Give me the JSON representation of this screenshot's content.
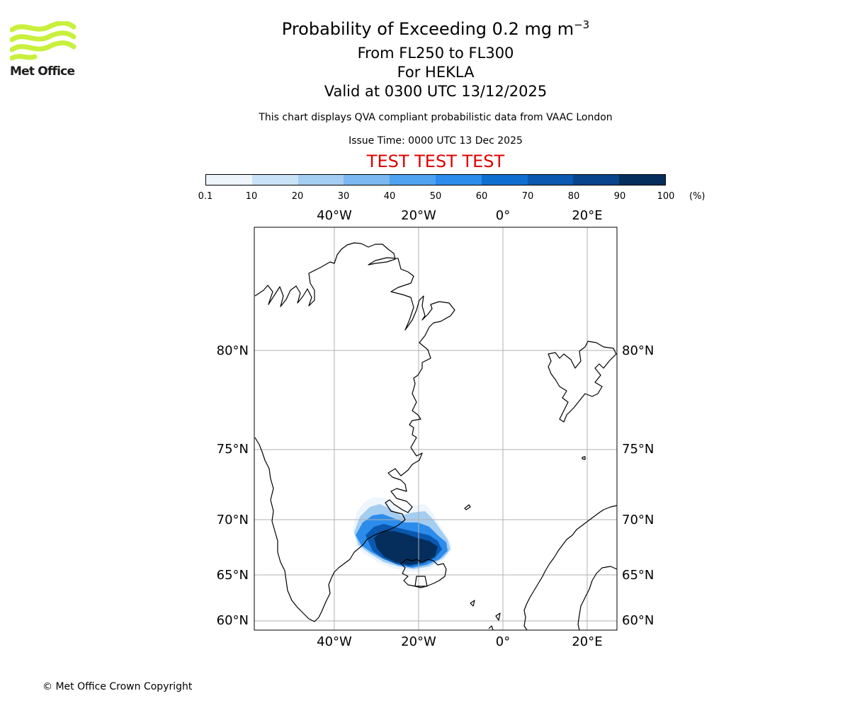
{
  "header": {
    "title_main": "Probability of Exceeding 0.2 mg m",
    "title_exp": "−3",
    "title_line2": "From FL250 to FL300",
    "title_line3": "For HEKLA",
    "title_line4": "Valid at 0300 UTC 13/12/2025",
    "subtitle": "This chart displays QVA compliant probabilistic data from VAAC London",
    "issue_time": "Issue Time: 0000 UTC 13 Dec 2025",
    "test_banner": "TEST TEST TEST"
  },
  "logo": {
    "text": "Met Office",
    "color": "#c8f03c"
  },
  "colorbar": {
    "ticks": [
      "0.1",
      "10",
      "20",
      "30",
      "40",
      "50",
      "60",
      "70",
      "80",
      "90",
      "100"
    ],
    "unit": "(%)",
    "colors": [
      "#eef5fd",
      "#c9e2f7",
      "#a4cdf2",
      "#7bb8f0",
      "#4ea2ef",
      "#2b8cec",
      "#0f6fd1",
      "#0a58b0",
      "#07448a",
      "#052e5c"
    ]
  },
  "map": {
    "lon_labels": [
      "40°W",
      "20°W",
      "0°",
      "20°E"
    ],
    "lat_labels": [
      "80°N",
      "75°N",
      "70°N",
      "65°N",
      "60°N"
    ],
    "gridline_color": "#b0b0b0",
    "coastline_color": "#000000",
    "volcano": "HEKLA"
  },
  "footer": {
    "copyright": "© Met Office Crown Copyright"
  }
}
